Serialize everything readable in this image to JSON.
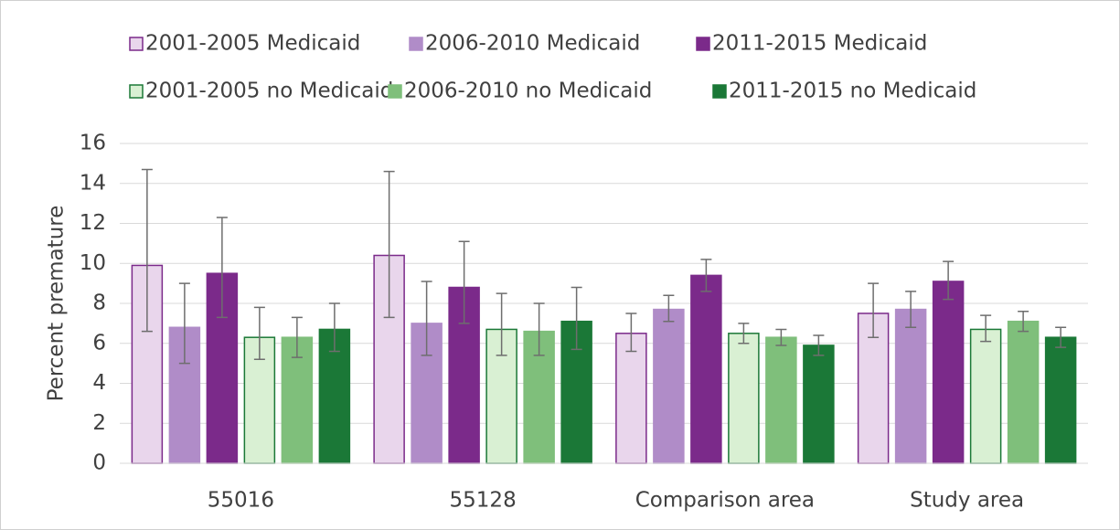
{
  "chart_data": {
    "type": "bar",
    "ylabel": "Percent premature",
    "categories": [
      "55016",
      "55128",
      "Comparison area",
      "Study area"
    ],
    "ylim": [
      0,
      16
    ],
    "yticks": [
      0,
      2,
      4,
      6,
      8,
      10,
      12,
      14,
      16
    ],
    "grid": true,
    "series": [
      {
        "name": "2001-2005 Medicaid",
        "color": "#e9d6ec",
        "edgecolor": "#7b2a8a",
        "values": [
          9.9,
          10.4,
          6.5,
          7.5
        ],
        "ci_low": [
          6.6,
          7.3,
          5.6,
          6.3
        ],
        "ci_high": [
          14.7,
          14.6,
          7.5,
          9.0
        ]
      },
      {
        "name": "2006-2010 Medicaid",
        "color": "#b08cc8",
        "edgecolor": "#b08cc8",
        "values": [
          6.8,
          7.0,
          7.7,
          7.7
        ],
        "ci_low": [
          5.0,
          5.4,
          7.1,
          6.8
        ],
        "ci_high": [
          9.0,
          9.1,
          8.4,
          8.6
        ]
      },
      {
        "name": "2011-2015 Medicaid",
        "color": "#7b2a8a",
        "edgecolor": "#7b2a8a",
        "values": [
          9.5,
          8.8,
          9.4,
          9.1
        ],
        "ci_low": [
          7.3,
          7.0,
          8.6,
          8.2
        ],
        "ci_high": [
          12.3,
          11.1,
          10.2,
          10.1
        ]
      },
      {
        "name": "2001-2005 no Medicaid",
        "color": "#d9f0d3",
        "edgecolor": "#1b7837",
        "values": [
          6.3,
          6.7,
          6.5,
          6.7
        ],
        "ci_low": [
          5.2,
          5.4,
          6.0,
          6.1
        ],
        "ci_high": [
          7.8,
          8.5,
          7.0,
          7.4
        ]
      },
      {
        "name": "2006-2010 no Medicaid",
        "color": "#7fbf7b",
        "edgecolor": "#7fbf7b",
        "values": [
          6.3,
          6.6,
          6.3,
          7.1
        ],
        "ci_low": [
          5.3,
          5.4,
          5.9,
          6.6
        ],
        "ci_high": [
          7.3,
          8.0,
          6.7,
          7.6
        ]
      },
      {
        "name": "2011-2015 no Medicaid",
        "color": "#1b7837",
        "edgecolor": "#1b7837",
        "values": [
          6.7,
          7.1,
          5.9,
          6.3
        ],
        "ci_low": [
          5.6,
          5.7,
          5.4,
          5.8
        ],
        "ci_high": [
          8.0,
          8.8,
          6.4,
          6.8
        ]
      }
    ]
  }
}
